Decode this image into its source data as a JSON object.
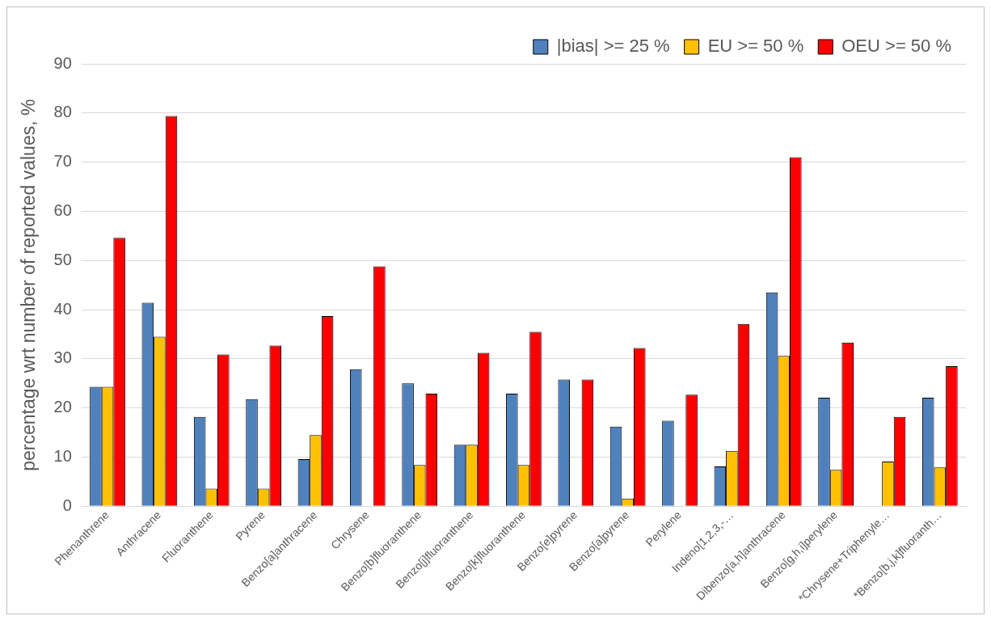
{
  "chart_data": {
    "type": "bar",
    "ylabel": "percentage wrt number of reported values, %",
    "categories": [
      "Phenanthrene",
      "Anthracene",
      "Fluoranthene",
      "Pyrene",
      "Benzo[a]anthracene",
      "Chrysene",
      "Benzo[b]fluoranthene",
      "Benzo[j]fluoranthene",
      "Benzo[k]fluoranthene",
      "Benzo[e]pyrene",
      "Benzo[a]pyrene",
      "Perylene",
      "Indeno[1,2,3,-…",
      "Dibenzo[a,h]anthracene",
      "Benzo[g,h,i]perylene",
      "*Chrysene+Triphenyle…",
      "*Benzo[b,j,k]fluoranth…"
    ],
    "series": [
      {
        "name": "|bias| >= 25 %",
        "color": "#4f81bd",
        "values": [
          24.3,
          41.4,
          18.2,
          21.8,
          9.6,
          27.9,
          25.0,
          12.5,
          22.9,
          25.8,
          16.2,
          17.4,
          8.1,
          43.5,
          22.1,
          0,
          22.1
        ]
      },
      {
        "name": "EU >= 50 %",
        "color": "#ffc000",
        "values": [
          24.3,
          34.5,
          3.6,
          3.6,
          14.5,
          0,
          8.4,
          12.5,
          8.4,
          0,
          1.6,
          0,
          11.3,
          30.6,
          7.4,
          9.1,
          7.9
        ]
      },
      {
        "name": "OEU >= 50 %",
        "color": "#ff0000",
        "values": [
          54.6,
          79.4,
          30.9,
          32.7,
          38.7,
          48.8,
          22.9,
          31.2,
          35.5,
          25.8,
          32.2,
          22.7,
          37.1,
          71.0,
          33.3,
          18.2,
          28.5
        ]
      }
    ],
    "ylim": [
      0,
      90
    ],
    "yticks": [
      0,
      10,
      20,
      30,
      40,
      50,
      60,
      70,
      80,
      90
    ],
    "grid": "y",
    "legend": "top right"
  }
}
